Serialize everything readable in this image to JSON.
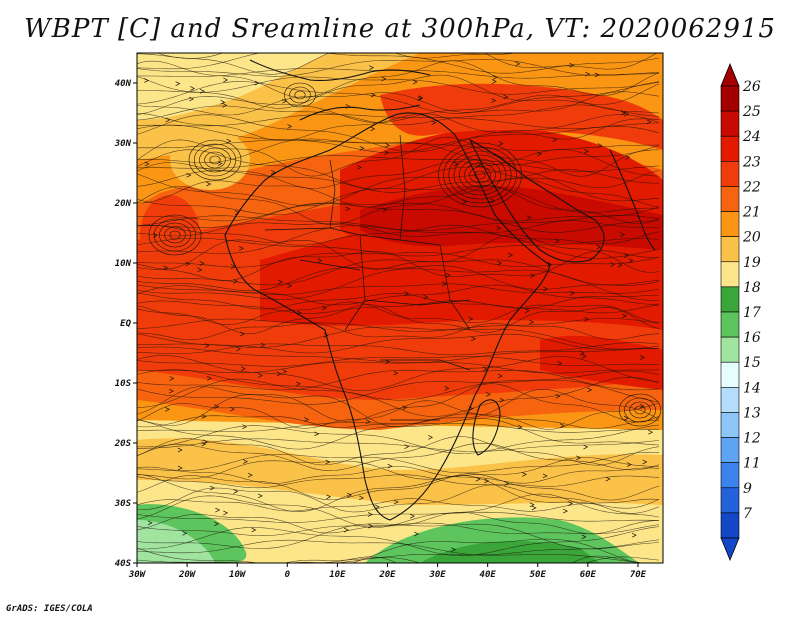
{
  "title": "WBPT [C] and Sreamline at 300hPa, VT: 2020062915",
  "footer": "GrADS: IGES/COLA",
  "map": {
    "lon_range": [
      -30,
      75
    ],
    "lat_range": [
      -40,
      45
    ],
    "x_ticks": [
      {
        "value": -30,
        "label": "30W"
      },
      {
        "value": -20,
        "label": "20W"
      },
      {
        "value": -10,
        "label": "10W"
      },
      {
        "value": 0,
        "label": "0"
      },
      {
        "value": 10,
        "label": "10E"
      },
      {
        "value": 20,
        "label": "20E"
      },
      {
        "value": 30,
        "label": "30E"
      },
      {
        "value": 40,
        "label": "40E"
      },
      {
        "value": 50,
        "label": "50E"
      },
      {
        "value": 60,
        "label": "60E"
      },
      {
        "value": 70,
        "label": "70E"
      }
    ],
    "y_ticks": [
      {
        "value": 40,
        "label": "40N"
      },
      {
        "value": 30,
        "label": "30N"
      },
      {
        "value": 20,
        "label": "20N"
      },
      {
        "value": 10,
        "label": "10N"
      },
      {
        "value": 0,
        "label": "EQ"
      },
      {
        "value": -10,
        "label": "10S"
      },
      {
        "value": -20,
        "label": "20S"
      },
      {
        "value": -30,
        "label": "30S"
      },
      {
        "value": -40,
        "label": "40S"
      }
    ]
  },
  "colorbar": {
    "levels": [
      {
        "label": "26",
        "color": "#a50000"
      },
      {
        "label": "25",
        "color": "#c80a00"
      },
      {
        "label": "24",
        "color": "#e11a00"
      },
      {
        "label": "23",
        "color": "#f03c0a"
      },
      {
        "label": "22",
        "color": "#f6640f"
      },
      {
        "label": "21",
        "color": "#fa9614"
      },
      {
        "label": "20",
        "color": "#fbc24a"
      },
      {
        "label": "19",
        "color": "#fde68a"
      },
      {
        "label": "18",
        "color": "#3aa63a"
      },
      {
        "label": "17",
        "color": "#5ec55e"
      },
      {
        "label": "16",
        "color": "#a0e4a0"
      },
      {
        "label": "15",
        "color": "#e6fdfd"
      },
      {
        "label": "14",
        "color": "#b4ddfc"
      },
      {
        "label": "13",
        "color": "#8cc6f8"
      },
      {
        "label": "12",
        "color": "#5ea4f4"
      },
      {
        "label": "11",
        "color": "#3c82ec"
      },
      {
        "label": "9",
        "color": "#2462dc"
      },
      {
        "label": "7",
        "color": "#1446c8"
      }
    ]
  }
}
